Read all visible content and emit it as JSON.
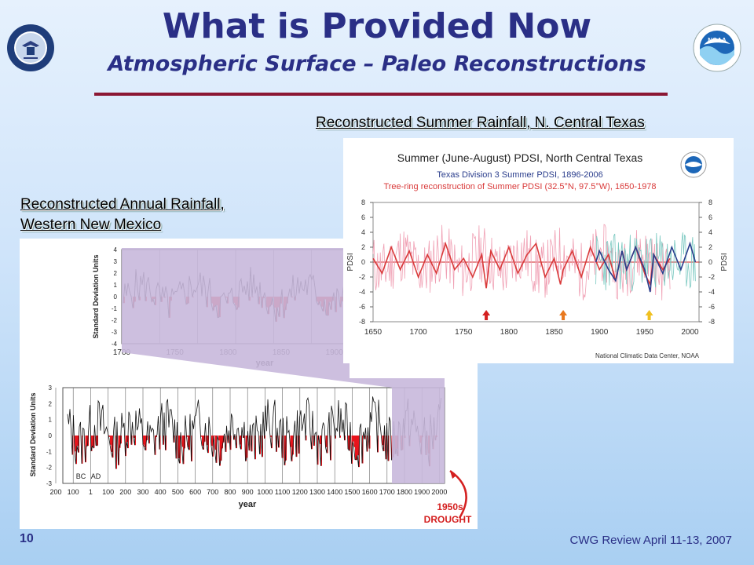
{
  "header": {
    "title": "What is Provided Now",
    "subtitle": "Atmospheric Surface – Paleo Reconstructions"
  },
  "logos": {
    "commerce": {
      "icon": "doc-seal-icon",
      "text": "DEPARTMENT OF COMMERCE • UNITED STATES OF AMERICA"
    },
    "noaa": {
      "icon": "noaa-logo-icon",
      "text": "NOAA"
    }
  },
  "captions": {
    "texas": "Reconstructed Summer Rainfall, N. Central Texas",
    "nm_line1": "Reconstructed Annual Rainfall,",
    "nm_line2": "Western New Mexico"
  },
  "footer": {
    "slide_number": "10",
    "note": "CWG Review April 11-13, 2007"
  },
  "colors": {
    "title": "#2a2f86",
    "rule": "#8b1733",
    "drought_fill": "#e8141c",
    "highlight": "#c8b8dc",
    "observed": "#2a3d8c",
    "reconstruction": "#d93a3a"
  },
  "chart_data": [
    {
      "type": "line",
      "title": "Summer (June-August) PDSI, North Central Texas",
      "subtitle_1": "Texas Division 3 Summer PDSI, 1896-2006",
      "subtitle_2": "Tree-ring reconstruction of Summer PDSI (32.5°N, 97.5°W), 1650-1978",
      "ylabel": "PDSI",
      "xlim": [
        1650,
        2010
      ],
      "ylim": [
        -8,
        8
      ],
      "x_ticks": [
        1650,
        1700,
        1750,
        1800,
        1850,
        1900,
        1950,
        2000
      ],
      "y_ticks": [
        8,
        6,
        4,
        2,
        0,
        -2,
        -4,
        -6,
        -8
      ],
      "credit": "National Climatic Data Center, NOAA",
      "series": [
        {
          "name": "Tree-ring reconstruction of Summer PDSI (32.5°N, 97.5°W), 1650-1978",
          "color": "#d93a3a",
          "x": [
            1650,
            1660,
            1670,
            1680,
            1690,
            1700,
            1710,
            1720,
            1730,
            1740,
            1750,
            1760,
            1770,
            1775,
            1780,
            1790,
            1800,
            1810,
            1820,
            1830,
            1840,
            1850,
            1857,
            1860,
            1870,
            1880,
            1890,
            1900,
            1910,
            1918,
            1925,
            1930,
            1940,
            1950,
            1956,
            1960,
            1970,
            1978
          ],
          "y": [
            0.5,
            -1.5,
            2,
            -1,
            1.5,
            -2,
            1,
            -1.5,
            2.5,
            -1,
            0.5,
            -2,
            1,
            -3.5,
            1.5,
            -1,
            2,
            -1.5,
            1,
            2.5,
            -2,
            0.5,
            -3,
            -1,
            1.5,
            -2,
            2,
            -1,
            1,
            -2.5,
            1.5,
            -1,
            2,
            -1.5,
            -3,
            1,
            -1,
            0.5
          ]
        },
        {
          "name": "Texas Division 3 Summer PDSI, 1896-2006",
          "color": "#2a3d8c",
          "x": [
            1896,
            1900,
            1910,
            1918,
            1925,
            1930,
            1940,
            1950,
            1956,
            1960,
            1970,
            1980,
            1990,
            2000,
            2006
          ],
          "y": [
            0,
            1.5,
            -1,
            -2.5,
            1.5,
            -1,
            2,
            -1,
            -4,
            1,
            -1.5,
            2,
            -1,
            2.5,
            0
          ]
        }
      ],
      "drought_markers": [
        1775,
        1860,
        1955
      ],
      "marker_colors": [
        "#d42020",
        "#e8781e",
        "#f0c020"
      ]
    },
    {
      "type": "area",
      "ylabel": "Standard Deviation Units",
      "xlabel": "year",
      "xlim": [
        1700,
        2000
      ],
      "ylim": [
        -4,
        4
      ],
      "x_ticks": [
        1700,
        1750,
        1800,
        1850,
        1900
      ],
      "y_ticks": [
        4,
        3,
        2,
        1,
        0,
        -1,
        -2,
        -3,
        -4
      ]
    },
    {
      "type": "area",
      "ylabel": "Standard Deviation Units",
      "xlabel": "year",
      "xlim": [
        -200,
        2000
      ],
      "ylim": [
        -3,
        3
      ],
      "x_ticks": [
        "200",
        "100",
        "1",
        "100",
        "200",
        "300",
        "400",
        "500",
        "600",
        "700",
        "800",
        "900",
        "1000",
        "1100",
        "1200",
        "1300",
        "1400",
        "1500",
        "1600",
        "1700",
        "1800",
        "1900",
        "2000"
      ],
      "y_ticks": [
        3,
        2,
        1,
        0,
        -1,
        -2,
        -3
      ],
      "era_labels": [
        "BC",
        "AD"
      ],
      "highlight_range": [
        1700,
        2000
      ],
      "annotation": [
        "1950s",
        "DROUGHT"
      ]
    }
  ]
}
